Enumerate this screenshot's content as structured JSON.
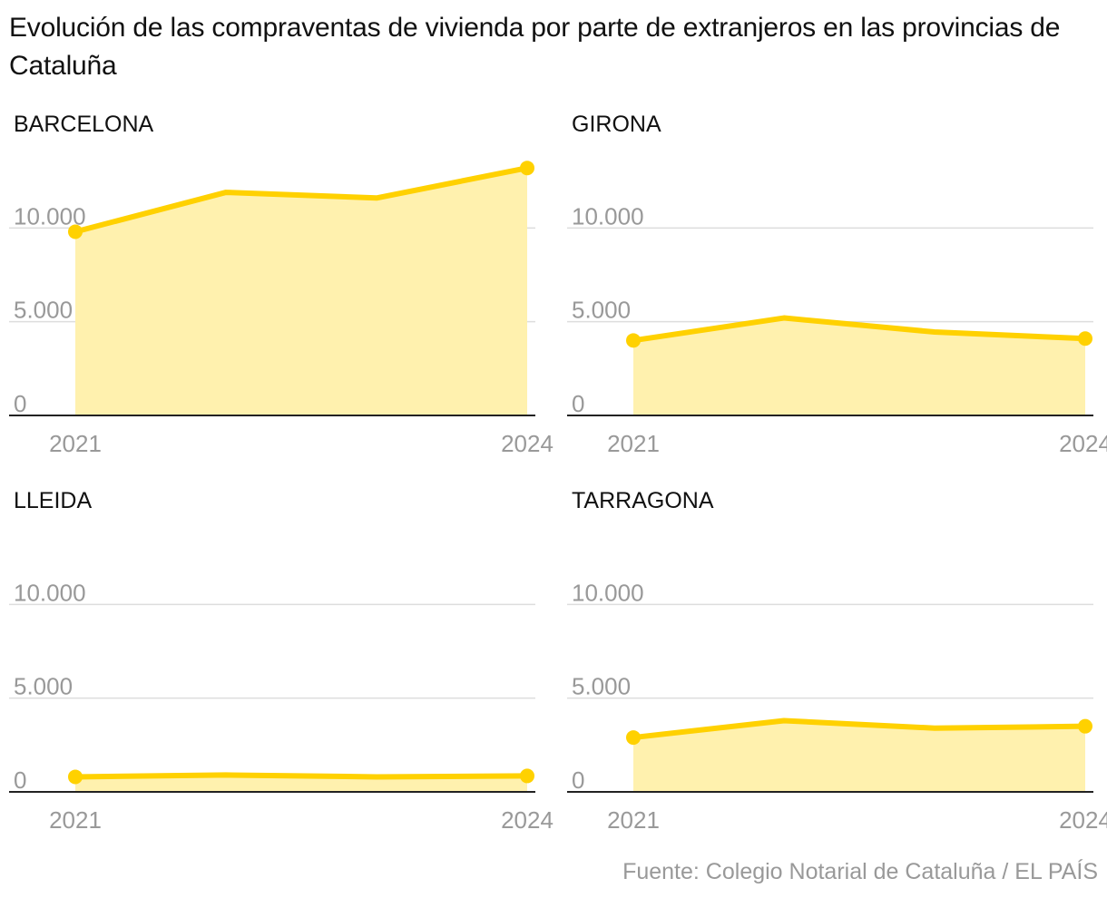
{
  "title": "Evolución de las compraventas de vivienda por parte de extranjeros en las provincias de Cataluña",
  "source": "Fuente: Colegio Notarial de Cataluña / EL PAÍS",
  "colors": {
    "line": "#FFD100",
    "area": "#FFF1AE",
    "grid": "#DDDDDD",
    "baseline": "#222222",
    "tick_text": "#999999"
  },
  "chart_data": [
    {
      "type": "area",
      "title": "BARCELONA",
      "x": [
        2021,
        2022,
        2023,
        2024
      ],
      "x_tick_labels": [
        "2021",
        "2024"
      ],
      "values": [
        9800,
        11900,
        11600,
        13200
      ],
      "y_ticks": [
        0,
        5000,
        10000
      ],
      "y_tick_labels": [
        "0",
        "5.000",
        "10.000"
      ],
      "ylim": [
        0,
        13500
      ],
      "endpoint_markers": true,
      "grid": true
    },
    {
      "type": "area",
      "title": "GIRONA",
      "x": [
        2021,
        2022,
        2023,
        2024
      ],
      "x_tick_labels": [
        "2021",
        "2024"
      ],
      "values": [
        4000,
        5200,
        4450,
        4100
      ],
      "y_ticks": [
        0,
        5000,
        10000
      ],
      "y_tick_labels": [
        "0",
        "5.000",
        "10.000"
      ],
      "ylim": [
        0,
        13500
      ],
      "endpoint_markers": true,
      "grid": true
    },
    {
      "type": "area",
      "title": "LLEIDA",
      "x": [
        2021,
        2022,
        2023,
        2024
      ],
      "x_tick_labels": [
        "2021",
        "2024"
      ],
      "values": [
        800,
        900,
        800,
        850
      ],
      "y_ticks": [
        0,
        5000,
        10000
      ],
      "y_tick_labels": [
        "0",
        "5.000",
        "10.000"
      ],
      "ylim": [
        0,
        13500
      ],
      "endpoint_markers": true,
      "grid": true
    },
    {
      "type": "area",
      "title": "TARRAGONA",
      "x": [
        2021,
        2022,
        2023,
        2024
      ],
      "x_tick_labels": [
        "2021",
        "2024"
      ],
      "values": [
        2900,
        3800,
        3400,
        3500
      ],
      "y_ticks": [
        0,
        5000,
        10000
      ],
      "y_tick_labels": [
        "0",
        "5.000",
        "10.000"
      ],
      "ylim": [
        0,
        13500
      ],
      "endpoint_markers": true,
      "grid": true
    }
  ]
}
